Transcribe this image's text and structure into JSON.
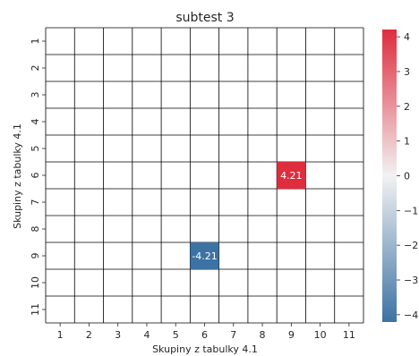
{
  "chart_data": {
    "type": "heatmap",
    "title": "subtest 3",
    "xlabel": "Skupiny z tabulky 4.1",
    "ylabel": "Skupiny z tabulky 4.1",
    "x_categories": [
      "1",
      "2",
      "3",
      "4",
      "5",
      "6",
      "7",
      "8",
      "9",
      "10",
      "11"
    ],
    "y_categories": [
      "1",
      "2",
      "3",
      "4",
      "5",
      "6",
      "7",
      "8",
      "9",
      "10",
      "11"
    ],
    "cells": [
      {
        "x": "9",
        "y": "6",
        "value": 4.21,
        "label": "4.21"
      },
      {
        "x": "6",
        "y": "9",
        "value": -4.21,
        "label": "-4.21"
      }
    ],
    "empty_cells": "blank",
    "colorbar": {
      "range": [
        -4.21,
        4.21
      ],
      "ticks": [
        4,
        3,
        2,
        1,
        0,
        -1,
        -2,
        -3,
        -4
      ],
      "tick_labels": [
        "4",
        "3",
        "2",
        "1",
        "0",
        "−1",
        "−2",
        "−3",
        "−4"
      ],
      "colors": {
        "low": "#3d72a4",
        "mid": "#f2f2f2",
        "high": "#de2d3d"
      }
    },
    "grid": true,
    "grid_color": "#000000"
  }
}
